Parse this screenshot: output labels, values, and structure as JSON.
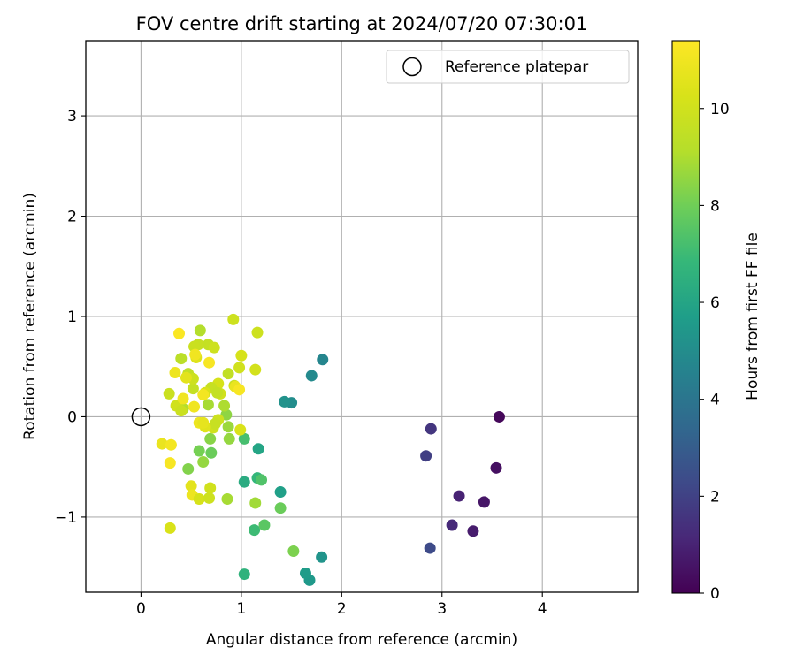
{
  "chart_data": {
    "type": "scatter",
    "title": "FOV centre drift starting at 2024/07/20 07:30:01",
    "xlabel": "Angular distance from reference (arcmin)",
    "ylabel": "Rotation from reference (arcmin)",
    "xlim": [
      -0.55,
      4.95
    ],
    "ylim": [
      -1.75,
      3.75
    ],
    "xticks": [
      0,
      1,
      2,
      3,
      4
    ],
    "yticks": [
      -1,
      0,
      1,
      2,
      3
    ],
    "xtick_labels": [
      "0",
      "1",
      "2",
      "3",
      "4"
    ],
    "ytick_labels": [
      "−1",
      "0",
      "1",
      "2",
      "3"
    ],
    "grid": true,
    "legend": {
      "label": "Reference platepar",
      "marker": "open-circle",
      "placement": "top-right"
    },
    "reference_point": {
      "x": 0,
      "y": 0
    },
    "colorbar": {
      "label": "Hours from first FF file",
      "colormap": "viridis",
      "range": [
        0,
        11.4
      ],
      "ticks": [
        0,
        2,
        4,
        6,
        8,
        10
      ],
      "tick_labels": [
        "0",
        "2",
        "4",
        "6",
        "8",
        "10"
      ]
    },
    "points": [
      {
        "x": 3.57,
        "y": 0.0,
        "t": 0.2
      },
      {
        "x": 3.54,
        "y": -0.51,
        "t": 0.4
      },
      {
        "x": 3.42,
        "y": -0.85,
        "t": 0.6
      },
      {
        "x": 3.31,
        "y": -1.14,
        "t": 0.8
      },
      {
        "x": 3.17,
        "y": -0.79,
        "t": 1.0
      },
      {
        "x": 3.1,
        "y": -1.08,
        "t": 1.2
      },
      {
        "x": 2.89,
        "y": -0.12,
        "t": 1.6
      },
      {
        "x": 2.84,
        "y": -0.39,
        "t": 1.9
      },
      {
        "x": 2.88,
        "y": -1.31,
        "t": 2.3
      },
      {
        "x": 1.81,
        "y": 0.57,
        "t": 4.7
      },
      {
        "x": 1.7,
        "y": 0.41,
        "t": 4.9
      },
      {
        "x": 1.5,
        "y": 0.14,
        "t": 5.0
      },
      {
        "x": 1.43,
        "y": 0.15,
        "t": 5.2
      },
      {
        "x": 1.8,
        "y": -1.4,
        "t": 5.3
      },
      {
        "x": 1.68,
        "y": -1.63,
        "t": 5.5
      },
      {
        "x": 1.64,
        "y": -1.56,
        "t": 5.6
      },
      {
        "x": 1.39,
        "y": -0.75,
        "t": 5.8
      },
      {
        "x": 1.17,
        "y": -0.32,
        "t": 6.0
      },
      {
        "x": 1.03,
        "y": -0.65,
        "t": 6.3
      },
      {
        "x": 1.03,
        "y": -1.57,
        "t": 6.6
      },
      {
        "x": 1.16,
        "y": -0.61,
        "t": 6.8
      },
      {
        "x": 1.13,
        "y": -1.13,
        "t": 7.0
      },
      {
        "x": 1.03,
        "y": -0.22,
        "t": 7.2
      },
      {
        "x": 1.2,
        "y": -0.63,
        "t": 7.4
      },
      {
        "x": 1.23,
        "y": -1.08,
        "t": 7.6
      },
      {
        "x": 1.39,
        "y": -0.91,
        "t": 7.9
      },
      {
        "x": 1.52,
        "y": -1.34,
        "t": 8.2
      },
      {
        "x": 0.7,
        "y": -0.36,
        "t": 7.9
      },
      {
        "x": 0.58,
        "y": -0.34,
        "t": 8.1
      },
      {
        "x": 0.47,
        "y": -0.52,
        "t": 8.3
      },
      {
        "x": 0.62,
        "y": -0.45,
        "t": 8.6
      },
      {
        "x": 1.14,
        "y": -0.86,
        "t": 8.8
      },
      {
        "x": 0.86,
        "y": -0.82,
        "t": 8.9
      },
      {
        "x": 0.88,
        "y": -0.22,
        "t": 8.6
      },
      {
        "x": 0.69,
        "y": -0.22,
        "t": 8.4
      },
      {
        "x": 0.85,
        "y": 0.02,
        "t": 8.5
      },
      {
        "x": 0.87,
        "y": -0.1,
        "t": 8.7
      },
      {
        "x": 0.67,
        "y": 0.12,
        "t": 8.9
      },
      {
        "x": 0.83,
        "y": 0.11,
        "t": 9.0
      },
      {
        "x": 0.59,
        "y": 0.86,
        "t": 9.1
      },
      {
        "x": 0.4,
        "y": 0.58,
        "t": 9.3
      },
      {
        "x": 0.42,
        "y": 0.08,
        "t": 9.1
      },
      {
        "x": 0.47,
        "y": 0.43,
        "t": 9.5
      },
      {
        "x": 0.52,
        "y": 0.28,
        "t": 9.6
      },
      {
        "x": 0.57,
        "y": 0.72,
        "t": 9.7
      },
      {
        "x": 0.53,
        "y": 0.7,
        "t": 9.8
      },
      {
        "x": 0.67,
        "y": 0.72,
        "t": 9.6
      },
      {
        "x": 0.73,
        "y": 0.69,
        "t": 9.9
      },
      {
        "x": 0.87,
        "y": 0.43,
        "t": 9.5
      },
      {
        "x": 0.92,
        "y": 0.97,
        "t": 9.9
      },
      {
        "x": 0.98,
        "y": 0.49,
        "t": 10.0
      },
      {
        "x": 1.14,
        "y": 0.47,
        "t": 10.1
      },
      {
        "x": 1.16,
        "y": 0.84,
        "t": 9.9
      },
      {
        "x": 1.0,
        "y": 0.61,
        "t": 10.2
      },
      {
        "x": 0.93,
        "y": 0.31,
        "t": 9.8
      },
      {
        "x": 0.77,
        "y": 0.33,
        "t": 10.2
      },
      {
        "x": 0.7,
        "y": 0.29,
        "t": 9.7
      },
      {
        "x": 0.79,
        "y": 0.23,
        "t": 10.0
      },
      {
        "x": 0.76,
        "y": 0.24,
        "t": 9.6
      },
      {
        "x": 0.64,
        "y": 0.24,
        "t": 10.3
      },
      {
        "x": 0.52,
        "y": 0.38,
        "t": 9.9
      },
      {
        "x": 0.55,
        "y": 0.59,
        "t": 10.4
      },
      {
        "x": 0.28,
        "y": 0.23,
        "t": 9.8
      },
      {
        "x": 0.35,
        "y": 0.11,
        "t": 10.0
      },
      {
        "x": 0.4,
        "y": 0.06,
        "t": 9.8
      },
      {
        "x": 0.72,
        "y": -0.11,
        "t": 10.0
      },
      {
        "x": 0.77,
        "y": -0.03,
        "t": 9.9
      },
      {
        "x": 0.74,
        "y": -0.07,
        "t": 9.7
      },
      {
        "x": 0.99,
        "y": -0.13,
        "t": 10.3
      },
      {
        "x": 0.64,
        "y": -0.1,
        "t": 10.5
      },
      {
        "x": 0.58,
        "y": -0.06,
        "t": 10.9
      },
      {
        "x": 0.62,
        "y": -0.06,
        "t": 10.7
      },
      {
        "x": 0.53,
        "y": 0.1,
        "t": 11.0
      },
      {
        "x": 0.62,
        "y": 0.22,
        "t": 11.1
      },
      {
        "x": 0.42,
        "y": 0.18,
        "t": 11.0
      },
      {
        "x": 0.45,
        "y": 0.39,
        "t": 10.6
      },
      {
        "x": 0.34,
        "y": 0.44,
        "t": 10.9
      },
      {
        "x": 0.38,
        "y": 0.83,
        "t": 11.3
      },
      {
        "x": 0.68,
        "y": 0.54,
        "t": 11.2
      },
      {
        "x": 0.54,
        "y": 0.62,
        "t": 11.0
      },
      {
        "x": 0.94,
        "y": 0.3,
        "t": 10.8
      },
      {
        "x": 0.98,
        "y": 0.27,
        "t": 11.2
      },
      {
        "x": 0.21,
        "y": -0.27,
        "t": 10.8
      },
      {
        "x": 0.3,
        "y": -0.28,
        "t": 11.1
      },
      {
        "x": 0.29,
        "y": -0.46,
        "t": 11.2
      },
      {
        "x": 0.5,
        "y": -0.69,
        "t": 10.6
      },
      {
        "x": 0.51,
        "y": -0.78,
        "t": 10.9
      },
      {
        "x": 0.58,
        "y": -0.82,
        "t": 10.2
      },
      {
        "x": 0.68,
        "y": -0.81,
        "t": 9.9
      },
      {
        "x": 0.69,
        "y": -0.71,
        "t": 10.0
      },
      {
        "x": 0.29,
        "y": -1.11,
        "t": 10.3
      }
    ]
  }
}
